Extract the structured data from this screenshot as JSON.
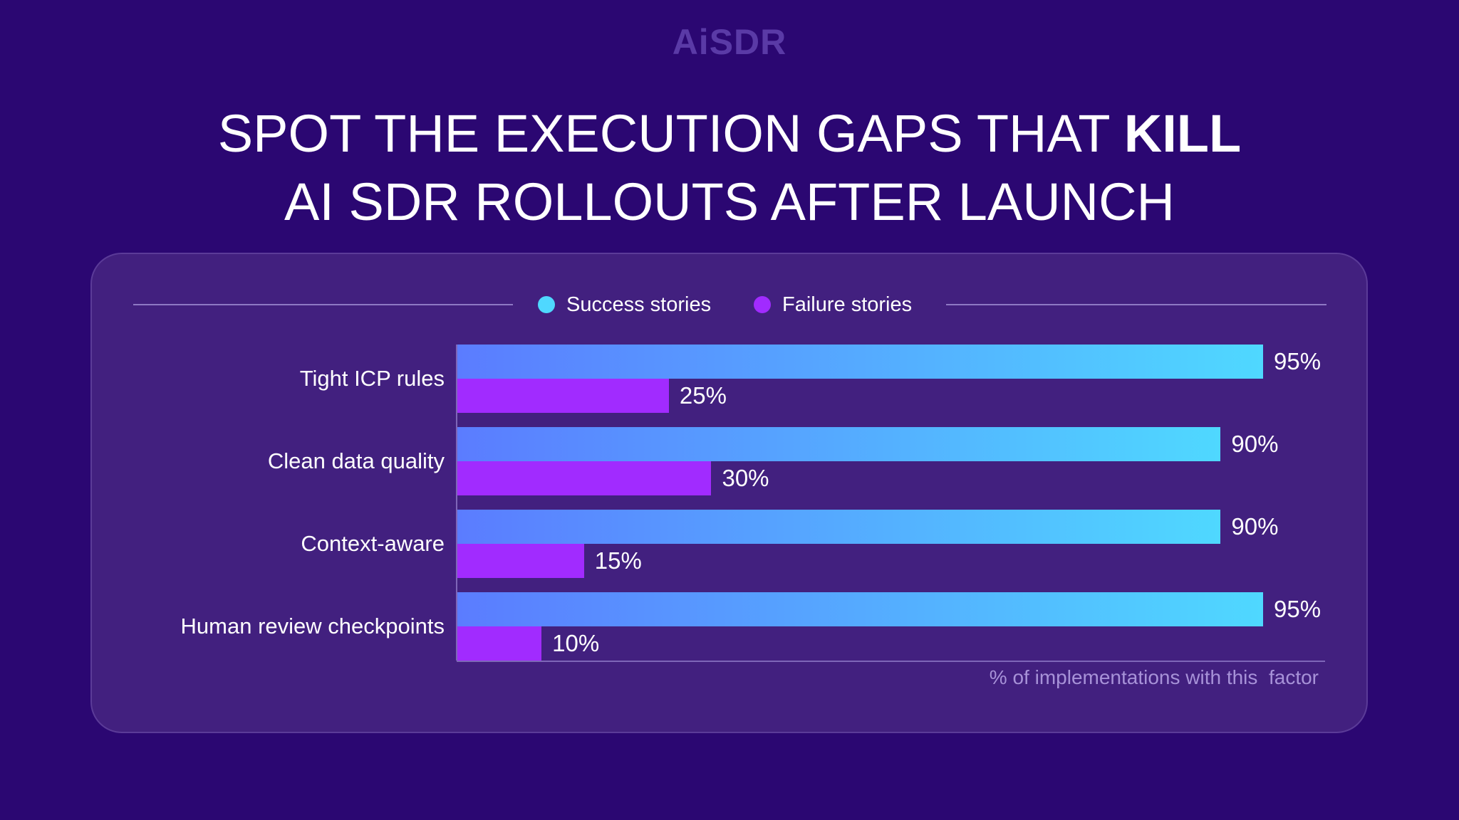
{
  "logo": "AiSDR",
  "title": {
    "line1_prefix": "SPOT THE EXECUTION GAPS THAT ",
    "line1_bold": "KILL",
    "line2": "AI SDR ROLLOUTS AFTER LAUNCH"
  },
  "colors": {
    "background": "#2b0772",
    "card": "#42207f",
    "success_start": "#5b7cff",
    "success_end": "#4fd8ff",
    "failure": "#a12bff",
    "success_dot": "#4fd8ff",
    "failure_dot": "#a12bff"
  },
  "chart_data": {
    "type": "bar",
    "orientation": "horizontal",
    "categories": [
      "Tight ICP rules",
      "Clean data quality",
      "Context-aware",
      "Human review checkpoints"
    ],
    "series": [
      {
        "name": "Success stories",
        "values": [
          95,
          90,
          90,
          95
        ]
      },
      {
        "name": "Failure stories",
        "values": [
          25,
          30,
          15,
          10
        ]
      }
    ],
    "value_labels": [
      [
        "95%",
        "90%",
        "90%",
        "95%"
      ],
      [
        "25%",
        "30%",
        "15%",
        "10%"
      ]
    ],
    "xlabel": "% of implementations with this  factor",
    "xlim": [
      0,
      100
    ],
    "legend_position": "top",
    "grid": false
  }
}
